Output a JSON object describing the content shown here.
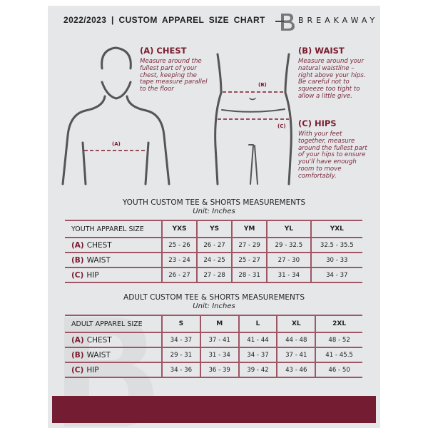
{
  "header": {
    "title": "2022/2023  |  CUSTOM APPAREL SIZE CHART",
    "brand": "BREAKAWAY",
    "logo_letter": "B"
  },
  "measure": {
    "chest": {
      "title": "(A) CHEST",
      "desc": "Measure around the fullest part of your chest, keeping the tape measure parallel to the floor",
      "marker": "(A)"
    },
    "waist": {
      "title": "(B) WAIST",
      "desc": "Measure around your natural waistline – right above your hips. Be careful not to squeeze too tight to allow a little give.",
      "marker": "(B)"
    },
    "hips": {
      "title": "(C) HIPS",
      "desc": "With your feet together, measure around the fullest part of your hips to ensure you'll have enough room to move comfortably.",
      "marker": "(C)"
    }
  },
  "youth": {
    "title": "YOUTH CUSTOM TEE & SHORTS MEASUREMENTS",
    "unit": "Unit: Inches",
    "header": [
      "YOUTH APPAREL SIZE",
      "YXS",
      "YS",
      "YM",
      "YL",
      "YXL"
    ],
    "rows": [
      {
        "label": "(A)",
        "name": "CHEST",
        "values": [
          "25 - 26",
          "26 - 27",
          "27 - 29",
          "29 - 32.5",
          "32.5 - 35.5"
        ]
      },
      {
        "label": "(B)",
        "name": "WAIST",
        "values": [
          "23 - 24",
          "24 - 25",
          "25 - 27",
          "27 - 30",
          "30 - 33"
        ]
      },
      {
        "label": "(C)",
        "name": "HIP",
        "values": [
          "26 - 27",
          "27 - 28",
          "28 - 31",
          "31 - 34",
          "34 - 37"
        ]
      }
    ]
  },
  "adult": {
    "title": "ADULT CUSTOM TEE & SHORTS MEASUREMENTS",
    "unit": "Unit: Inches",
    "header": [
      "ADULT APPAREL SIZE",
      "S",
      "M",
      "L",
      "XL",
      "2XL"
    ],
    "rows": [
      {
        "label": "(A)",
        "name": "CHEST",
        "values": [
          "34 - 37",
          "37 - 41",
          "41 - 44",
          "44 - 48",
          "48 - 52"
        ]
      },
      {
        "label": "(B)",
        "name": "WAIST",
        "values": [
          "29 - 31",
          "31 - 34",
          "34 - 37",
          "37 - 41",
          "41 - 45.5"
        ]
      },
      {
        "label": "(C)",
        "name": "HIP",
        "values": [
          "34 - 36",
          "36 - 39",
          "39 - 42",
          "43 - 46",
          "46 - 50"
        ]
      }
    ]
  },
  "colors": {
    "accent": "#741c32",
    "background": "#e6e7e9"
  }
}
